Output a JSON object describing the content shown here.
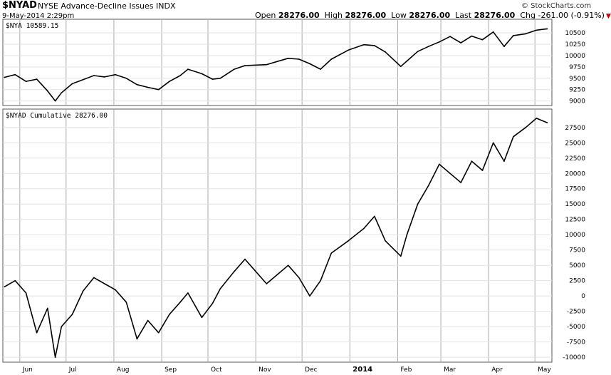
{
  "header": {
    "symbol": "$NYAD",
    "name": "NYSE Advance-Decline Issues",
    "exchange": "INDX",
    "datetime": "9-May-2014 2:29pm",
    "open_label": "Open",
    "open": "28276.00",
    "high_label": "High",
    "high": "28276.00",
    "low_label": "Low",
    "low": "28276.00",
    "last_label": "Last",
    "last": "28276.00",
    "chg_label": "Chg",
    "chg": "-261.00 (-0.91%)",
    "logo": "© StockCharts.com"
  },
  "colors": {
    "line": "#000000",
    "grid": "#aaaaaa",
    "down": "#cc0000"
  },
  "chart_data": [
    {
      "type": "line",
      "label": "$NYA 10589.15",
      "ylim": [
        8900,
        10800
      ],
      "yticks": [
        9000,
        9250,
        9500,
        9750,
        10000,
        10250,
        10500
      ],
      "x": [
        "2013-05-22",
        "2013-05-29",
        "2013-06-05",
        "2013-06-12",
        "2013-06-19",
        "2013-06-24",
        "2013-06-28",
        "2013-07-05",
        "2013-07-12",
        "2013-07-19",
        "2013-07-26",
        "2013-08-02",
        "2013-08-09",
        "2013-08-16",
        "2013-08-23",
        "2013-08-30",
        "2013-09-06",
        "2013-09-13",
        "2013-09-18",
        "2013-09-27",
        "2013-10-04",
        "2013-10-09",
        "2013-10-18",
        "2013-10-25",
        "2013-11-01",
        "2013-11-08",
        "2013-11-15",
        "2013-11-22",
        "2013-11-29",
        "2013-12-06",
        "2013-12-13",
        "2013-12-20",
        "2013-12-31",
        "2014-01-10",
        "2014-01-17",
        "2014-01-24",
        "2014-02-03",
        "2014-02-07",
        "2014-02-14",
        "2014-02-21",
        "2014-02-28",
        "2014-03-07",
        "2014-03-14",
        "2014-03-21",
        "2014-03-28",
        "2014-04-04",
        "2014-04-11",
        "2014-04-17",
        "2014-04-25",
        "2014-05-02",
        "2014-05-09"
      ],
      "values": [
        9520,
        9580,
        9430,
        9480,
        9220,
        9000,
        9180,
        9380,
        9470,
        9560,
        9530,
        9580,
        9500,
        9360,
        9300,
        9250,
        9430,
        9560,
        9700,
        9600,
        9480,
        9500,
        9700,
        9780,
        9790,
        9800,
        9870,
        9940,
        9920,
        9820,
        9700,
        9920,
        10120,
        10240,
        10220,
        10080,
        9760,
        9880,
        10090,
        10200,
        10300,
        10420,
        10280,
        10430,
        10350,
        10520,
        10200,
        10440,
        10480,
        10560,
        10589
      ]
    },
    {
      "type": "line",
      "label": "$NYAD Cumulative 28276.00",
      "ylim": [
        -10800,
        30500
      ],
      "yticks": [
        -10000,
        -7500,
        -5000,
        -2500,
        0,
        2500,
        5000,
        7500,
        10000,
        12500,
        15000,
        17500,
        20000,
        22500,
        25000,
        27500
      ],
      "x": [
        "2013-05-22",
        "2013-05-29",
        "2013-06-05",
        "2013-06-12",
        "2013-06-19",
        "2013-06-24",
        "2013-06-28",
        "2013-07-05",
        "2013-07-12",
        "2013-07-19",
        "2013-07-26",
        "2013-08-02",
        "2013-08-09",
        "2013-08-16",
        "2013-08-23",
        "2013-08-30",
        "2013-09-06",
        "2013-09-13",
        "2013-09-18",
        "2013-09-27",
        "2013-10-04",
        "2013-10-09",
        "2013-10-18",
        "2013-10-25",
        "2013-11-01",
        "2013-11-08",
        "2013-11-15",
        "2013-11-22",
        "2013-11-29",
        "2013-12-06",
        "2013-12-13",
        "2013-12-20",
        "2013-12-31",
        "2014-01-10",
        "2014-01-17",
        "2014-01-24",
        "2014-02-03",
        "2014-02-07",
        "2014-02-14",
        "2014-02-21",
        "2014-02-28",
        "2014-03-07",
        "2014-03-14",
        "2014-03-21",
        "2014-03-28",
        "2014-04-04",
        "2014-04-11",
        "2014-04-17",
        "2014-04-25",
        "2014-05-02",
        "2014-05-09"
      ],
      "values": [
        1500,
        2500,
        500,
        -6000,
        -2000,
        -10000,
        -5000,
        -3000,
        800,
        3000,
        2000,
        1000,
        -1000,
        -7000,
        -4000,
        -6000,
        -3000,
        -1000,
        500,
        -3500,
        -1200,
        1200,
        4000,
        6000,
        4000,
        2000,
        3500,
        5000,
        3000,
        0,
        2500,
        7000,
        9000,
        11000,
        13000,
        9000,
        6500,
        10000,
        15000,
        18000,
        21500,
        20000,
        18500,
        22000,
        20500,
        25000,
        22000,
        26000,
        27500,
        29000,
        28276
      ]
    }
  ],
  "x_axis": {
    "labels": [
      "Jun",
      "Jul",
      "Aug",
      "Sep",
      "Oct",
      "Nov",
      "Dec",
      "2014",
      "Feb",
      "Mar",
      "Apr",
      "May"
    ],
    "dates": [
      "2013-06-01",
      "2013-07-01",
      "2013-08-01",
      "2013-09-01",
      "2013-10-01",
      "2013-11-01",
      "2013-12-01",
      "2014-01-01",
      "2014-02-01",
      "2014-03-01",
      "2014-04-01",
      "2014-05-01"
    ]
  }
}
